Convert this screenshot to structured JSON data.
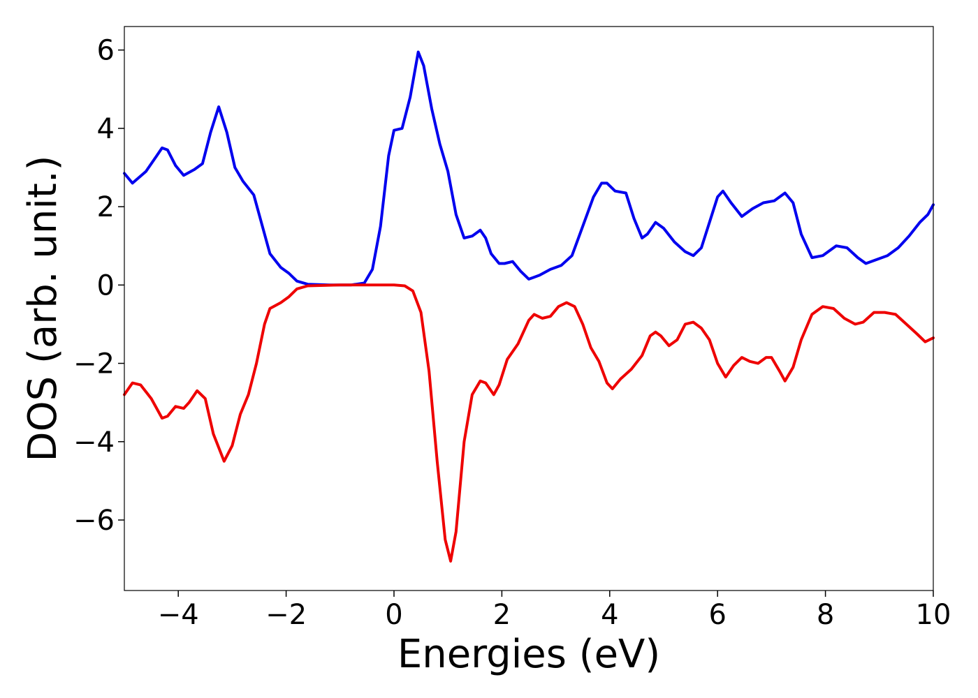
{
  "chart_data": {
    "type": "line",
    "title": "",
    "xlabel": "Energies (eV)",
    "ylabel": "DOS (arb. unit.)",
    "xlim": [
      -5,
      10
    ],
    "ylim": [
      -7.8,
      6.6
    ],
    "xticks": [
      -4,
      -2,
      0,
      2,
      4,
      6,
      8,
      10
    ],
    "xtick_labels": [
      "−4",
      "−2",
      "0",
      "2",
      "4",
      "6",
      "8",
      "10"
    ],
    "yticks": [
      -6,
      -4,
      -2,
      0,
      2,
      4,
      6
    ],
    "ytick_labels": [
      "−6",
      "−4",
      "−2",
      "0",
      "2",
      "4",
      "6"
    ],
    "grid": false,
    "series": [
      {
        "color": "#0000ee",
        "points": [
          [
            -5.0,
            2.85
          ],
          [
            -4.85,
            2.6
          ],
          [
            -4.6,
            2.9
          ],
          [
            -4.4,
            3.3
          ],
          [
            -4.3,
            3.5
          ],
          [
            -4.2,
            3.45
          ],
          [
            -4.05,
            3.05
          ],
          [
            -3.9,
            2.8
          ],
          [
            -3.7,
            2.95
          ],
          [
            -3.55,
            3.1
          ],
          [
            -3.4,
            3.9
          ],
          [
            -3.25,
            4.55
          ],
          [
            -3.1,
            3.9
          ],
          [
            -2.95,
            3.0
          ],
          [
            -2.8,
            2.65
          ],
          [
            -2.6,
            2.3
          ],
          [
            -2.4,
            1.3
          ],
          [
            -2.3,
            0.8
          ],
          [
            -2.1,
            0.45
          ],
          [
            -1.95,
            0.3
          ],
          [
            -1.8,
            0.1
          ],
          [
            -1.6,
            0.02
          ],
          [
            -1.2,
            0.0
          ],
          [
            -0.8,
            0.0
          ],
          [
            -0.55,
            0.05
          ],
          [
            -0.4,
            0.4
          ],
          [
            -0.25,
            1.5
          ],
          [
            -0.1,
            3.3
          ],
          [
            0.0,
            3.95
          ],
          [
            0.15,
            4.0
          ],
          [
            0.3,
            4.8
          ],
          [
            0.45,
            5.95
          ],
          [
            0.55,
            5.6
          ],
          [
            0.7,
            4.5
          ],
          [
            0.85,
            3.6
          ],
          [
            1.0,
            2.9
          ],
          [
            1.15,
            1.8
          ],
          [
            1.3,
            1.2
          ],
          [
            1.45,
            1.25
          ],
          [
            1.6,
            1.4
          ],
          [
            1.7,
            1.2
          ],
          [
            1.8,
            0.8
          ],
          [
            1.95,
            0.55
          ],
          [
            2.05,
            0.55
          ],
          [
            2.2,
            0.6
          ],
          [
            2.35,
            0.35
          ],
          [
            2.5,
            0.15
          ],
          [
            2.7,
            0.25
          ],
          [
            2.9,
            0.4
          ],
          [
            3.1,
            0.5
          ],
          [
            3.3,
            0.75
          ],
          [
            3.5,
            1.5
          ],
          [
            3.7,
            2.25
          ],
          [
            3.85,
            2.6
          ],
          [
            3.95,
            2.6
          ],
          [
            4.1,
            2.4
          ],
          [
            4.3,
            2.35
          ],
          [
            4.45,
            1.7
          ],
          [
            4.6,
            1.2
          ],
          [
            4.7,
            1.3
          ],
          [
            4.85,
            1.6
          ],
          [
            5.0,
            1.45
          ],
          [
            5.2,
            1.1
          ],
          [
            5.4,
            0.85
          ],
          [
            5.55,
            0.75
          ],
          [
            5.7,
            0.95
          ],
          [
            5.85,
            1.6
          ],
          [
            6.0,
            2.25
          ],
          [
            6.1,
            2.4
          ],
          [
            6.25,
            2.1
          ],
          [
            6.45,
            1.75
          ],
          [
            6.65,
            1.95
          ],
          [
            6.85,
            2.1
          ],
          [
            7.05,
            2.15
          ],
          [
            7.25,
            2.35
          ],
          [
            7.4,
            2.1
          ],
          [
            7.55,
            1.3
          ],
          [
            7.75,
            0.7
          ],
          [
            7.95,
            0.75
          ],
          [
            8.2,
            1.0
          ],
          [
            8.4,
            0.95
          ],
          [
            8.6,
            0.7
          ],
          [
            8.75,
            0.55
          ],
          [
            8.95,
            0.65
          ],
          [
            9.15,
            0.75
          ],
          [
            9.35,
            0.95
          ],
          [
            9.55,
            1.25
          ],
          [
            9.75,
            1.6
          ],
          [
            9.9,
            1.8
          ],
          [
            10.0,
            2.05
          ]
        ]
      },
      {
        "color": "#ee0000",
        "points": [
          [
            -5.0,
            -2.8
          ],
          [
            -4.85,
            -2.5
          ],
          [
            -4.7,
            -2.55
          ],
          [
            -4.5,
            -2.9
          ],
          [
            -4.3,
            -3.4
          ],
          [
            -4.2,
            -3.35
          ],
          [
            -4.05,
            -3.1
          ],
          [
            -3.9,
            -3.15
          ],
          [
            -3.8,
            -3.0
          ],
          [
            -3.65,
            -2.7
          ],
          [
            -3.5,
            -2.9
          ],
          [
            -3.35,
            -3.8
          ],
          [
            -3.15,
            -4.5
          ],
          [
            -3.0,
            -4.1
          ],
          [
            -2.85,
            -3.3
          ],
          [
            -2.7,
            -2.8
          ],
          [
            -2.55,
            -2.0
          ],
          [
            -2.4,
            -1.0
          ],
          [
            -2.3,
            -0.6
          ],
          [
            -2.1,
            -0.45
          ],
          [
            -1.95,
            -0.3
          ],
          [
            -1.8,
            -0.1
          ],
          [
            -1.6,
            -0.02
          ],
          [
            -1.0,
            0.0
          ],
          [
            0.0,
            0.0
          ],
          [
            0.2,
            -0.02
          ],
          [
            0.35,
            -0.15
          ],
          [
            0.5,
            -0.7
          ],
          [
            0.65,
            -2.2
          ],
          [
            0.8,
            -4.5
          ],
          [
            0.95,
            -6.5
          ],
          [
            1.05,
            -7.05
          ],
          [
            1.15,
            -6.3
          ],
          [
            1.3,
            -4.0
          ],
          [
            1.45,
            -2.8
          ],
          [
            1.6,
            -2.45
          ],
          [
            1.7,
            -2.5
          ],
          [
            1.85,
            -2.8
          ],
          [
            1.95,
            -2.55
          ],
          [
            2.1,
            -1.9
          ],
          [
            2.3,
            -1.5
          ],
          [
            2.5,
            -0.9
          ],
          [
            2.6,
            -0.75
          ],
          [
            2.75,
            -0.85
          ],
          [
            2.9,
            -0.8
          ],
          [
            3.05,
            -0.55
          ],
          [
            3.2,
            -0.45
          ],
          [
            3.35,
            -0.55
          ],
          [
            3.5,
            -1.0
          ],
          [
            3.65,
            -1.6
          ],
          [
            3.8,
            -1.95
          ],
          [
            3.95,
            -2.5
          ],
          [
            4.05,
            -2.65
          ],
          [
            4.2,
            -2.4
          ],
          [
            4.4,
            -2.15
          ],
          [
            4.6,
            -1.8
          ],
          [
            4.75,
            -1.3
          ],
          [
            4.85,
            -1.2
          ],
          [
            4.95,
            -1.3
          ],
          [
            5.1,
            -1.55
          ],
          [
            5.25,
            -1.4
          ],
          [
            5.4,
            -1.0
          ],
          [
            5.55,
            -0.95
          ],
          [
            5.7,
            -1.1
          ],
          [
            5.85,
            -1.4
          ],
          [
            6.0,
            -2.0
          ],
          [
            6.15,
            -2.35
          ],
          [
            6.3,
            -2.05
          ],
          [
            6.45,
            -1.85
          ],
          [
            6.6,
            -1.95
          ],
          [
            6.75,
            -2.0
          ],
          [
            6.9,
            -1.85
          ],
          [
            7.0,
            -1.85
          ],
          [
            7.15,
            -2.2
          ],
          [
            7.25,
            -2.45
          ],
          [
            7.4,
            -2.1
          ],
          [
            7.55,
            -1.4
          ],
          [
            7.75,
            -0.75
          ],
          [
            7.95,
            -0.55
          ],
          [
            8.15,
            -0.6
          ],
          [
            8.35,
            -0.85
          ],
          [
            8.55,
            -1.0
          ],
          [
            8.7,
            -0.95
          ],
          [
            8.9,
            -0.7
          ],
          [
            9.1,
            -0.7
          ],
          [
            9.3,
            -0.75
          ],
          [
            9.5,
            -1.0
          ],
          [
            9.7,
            -1.25
          ],
          [
            9.85,
            -1.45
          ],
          [
            10.0,
            -1.35
          ]
        ]
      }
    ]
  }
}
